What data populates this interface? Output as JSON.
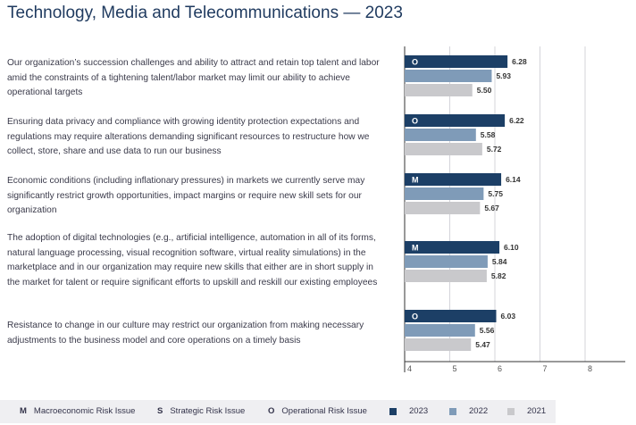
{
  "chart_data": {
    "type": "bar",
    "orientation": "horizontal",
    "title": "Technology, Media and Telecommunications — 2023",
    "categories": [
      "Our organization’s succession challenges and ability to attract and retain top talent and labor amid the constraints of a tightening talent/labor market may limit our ability to achieve operational targets",
      "Ensuring data privacy and compliance with growing identity protection expectations and regulations may require alterations demanding significant resources to restructure how we collect, store, share and use data to run our business",
      "Economic conditions (including inflationary pressures) in markets we currently serve may significantly restrict growth opportunities, impact margins or require new skill sets for our organization",
      "The adoption of digital technologies (e.g., artificial intelligence, automation in all of its forms, natural language processing, visual recognition software, virtual reality simulations) in the marketplace and in our organization may require new skills that either are in short supply in the market for talent or require significant efforts to upskill and reskill our existing employees",
      "Resistance to change in our culture may restrict our organization from making necessary adjustments to the business model and core operations on a timely basis"
    ],
    "risk_codes": [
      "O",
      "O",
      "M",
      "M",
      "O"
    ],
    "series": [
      {
        "name": "2023",
        "color": "#1c3f66",
        "values": [
          6.28,
          6.22,
          6.14,
          6.1,
          6.03
        ]
      },
      {
        "name": "2022",
        "color": "#7f9bb8",
        "values": [
          5.93,
          5.58,
          5.75,
          5.84,
          5.56
        ]
      },
      {
        "name": "2021",
        "color": "#c9c9cc",
        "values": [
          5.5,
          5.72,
          5.67,
          5.82,
          5.47
        ]
      }
    ],
    "value_labels": [
      [
        "6.28",
        "5.93",
        "5.50"
      ],
      [
        "6.22",
        "5.58",
        "5.72"
      ],
      [
        "6.14",
        "5.75",
        "5.67"
      ],
      [
        "6.10",
        "5.84",
        "5.82"
      ],
      [
        "6.03",
        "5.56",
        "5.47"
      ]
    ],
    "xlim": [
      4,
      8
    ],
    "xticks": [
      "4",
      "5",
      "6",
      "7",
      "8"
    ],
    "grid": true,
    "legend": {
      "risk_types": [
        {
          "code": "M",
          "label": "Macroeconomic Risk Issue"
        },
        {
          "code": "S",
          "label": "Strategic Risk Issue"
        },
        {
          "code": "O",
          "label": "Operational Risk Issue"
        }
      ],
      "years": [
        {
          "label": "2023",
          "color": "#1c3f66"
        },
        {
          "label": "2022",
          "color": "#7f9bb8"
        },
        {
          "label": "2021",
          "color": "#c9c9cc"
        }
      ]
    }
  }
}
